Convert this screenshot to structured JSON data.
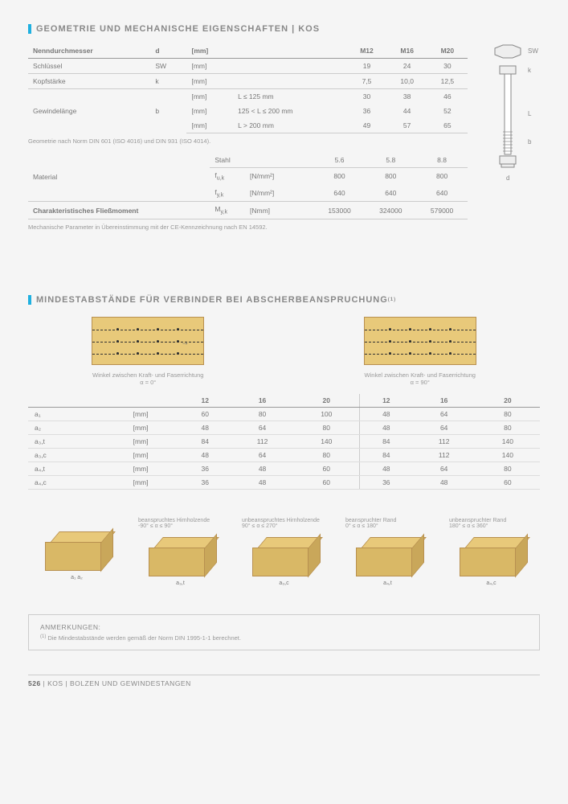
{
  "section1": {
    "title": "GEOMETRIE UND MECHANISCHE EIGENSCHAFTEN | KOS",
    "table": {
      "sizes": [
        "M12",
        "M16",
        "M20"
      ],
      "rows": {
        "nenn_label": "Nenndurchmesser",
        "nenn_sym": "d",
        "nenn_unit": "[mm]",
        "schl_label": "Schlüssel",
        "schl_sym": "SW",
        "schl_unit": "[mm]",
        "schl": [
          "19",
          "24",
          "30"
        ],
        "kopf_label": "Kopfstärke",
        "kopf_sym": "k",
        "kopf_unit": "[mm]",
        "kopf": [
          "7,5",
          "10,0",
          "12,5"
        ],
        "gew_label": "Gewindelänge",
        "gew_sym": "b",
        "gew_u1": "[mm]",
        "gew_c1": "L ≤ 125 mm",
        "gew_v1": [
          "30",
          "38",
          "46"
        ],
        "gew_u2": "[mm]",
        "gew_c2": "125 < L ≤ 200 mm",
        "gew_v2": [
          "36",
          "44",
          "52"
        ],
        "gew_u3": "[mm]",
        "gew_c3": "L > 200 mm",
        "gew_v3": [
          "49",
          "57",
          "65"
        ]
      },
      "note1": "Geometrie nach Norm DIN 601 (ISO 4016) und DIN 931 (ISO 4014).",
      "material": {
        "mat_label": "Material",
        "stahl": "Stahl",
        "classes": [
          "5.6",
          "5.8",
          "8.8"
        ],
        "fuk_sym": "f",
        "fuk_sub": "u,k",
        "fuk_unit": "[N/mm²]",
        "fuk": [
          "800",
          "800",
          "800"
        ],
        "fyk_sym": "f",
        "fyk_sub": "y,k",
        "fyk_unit": "[N/mm²]",
        "fyk": [
          "640",
          "640",
          "640"
        ],
        "cfm_label": "Charakteristisches Fließmoment",
        "cfm_sym": "M",
        "cfm_sub": "y,k",
        "cfm_unit": "[Nmm]",
        "cfm": [
          "153000",
          "324000",
          "579000"
        ]
      },
      "note2": "Mechanische Parameter in Übereinstimmung mit der CE-Kennzeichnung nach EN 14592."
    },
    "bolt_labels": {
      "sw": "SW",
      "k": "k",
      "L": "L",
      "b": "b",
      "d": "d"
    }
  },
  "section2": {
    "title": "MINDESTABSTÄNDE FÜR VERBINDER BEI ABSCHERBEANSPRUCHUNG",
    "sup": "(1)",
    "diag_left": "Winkel zwischen Kraft- und Faserrichtung α = 0°",
    "diag_right": "Winkel zwischen Kraft- und Faserrichtung α = 90°",
    "cols_left": [
      "12",
      "16",
      "20"
    ],
    "cols_right": [
      "12",
      "16",
      "20"
    ],
    "rows": [
      {
        "l": "a₁",
        "u": "[mm]",
        "L": [
          "60",
          "80",
          "100"
        ],
        "R": [
          "48",
          "64",
          "80"
        ]
      },
      {
        "l": "a₂",
        "u": "[mm]",
        "L": [
          "48",
          "64",
          "80"
        ],
        "R": [
          "48",
          "64",
          "80"
        ]
      },
      {
        "l": "a₃,t",
        "u": "[mm]",
        "L": [
          "84",
          "112",
          "140"
        ],
        "R": [
          "84",
          "112",
          "140"
        ]
      },
      {
        "l": "a₃,c",
        "u": "[mm]",
        "L": [
          "48",
          "64",
          "80"
        ],
        "R": [
          "84",
          "112",
          "140"
        ]
      },
      {
        "l": "a₄,t",
        "u": "[mm]",
        "L": [
          "36",
          "48",
          "60"
        ],
        "R": [
          "48",
          "64",
          "80"
        ]
      },
      {
        "l": "a₄,c",
        "u": "[mm]",
        "L": [
          "36",
          "48",
          "60"
        ],
        "R": [
          "36",
          "48",
          "60"
        ]
      }
    ]
  },
  "bottom_diags": [
    {
      "title": "",
      "range": "",
      "lab": "a₁   a₂"
    },
    {
      "title": "beanspruchtes Hirnholzende",
      "range": "-90° ≤ α ≤ 90°",
      "lab": "a₃,t"
    },
    {
      "title": "unbeanspruchtes Hirnholzende",
      "range": "90° ≤ α ≤ 270°",
      "lab": "a₃,c"
    },
    {
      "title": "beanspruchter Rand",
      "range": "0° ≤ α ≤ 180°",
      "lab": "a₄,t"
    },
    {
      "title": "unbeanspruchter Rand",
      "range": "180° ≤ α ≤ 360°",
      "lab": "a₄,c"
    }
  ],
  "footnote": {
    "title": "ANMERKUNGEN:",
    "sup": "(1)",
    "body": " Die Mindestabstände werden gemäß der Norm DIN 1995-1-1 berechnet."
  },
  "footer": {
    "page": "526",
    "sep": "  |  ",
    "code": "KOS",
    "sep2": "  |  ",
    "name": "BOLZEN UND GEWINDESTANGEN"
  }
}
